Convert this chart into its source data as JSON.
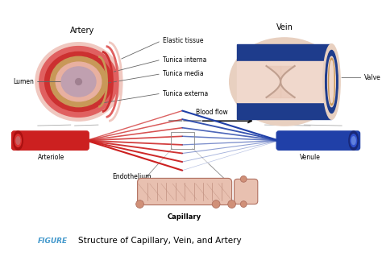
{
  "title": "Structure of Capillary, Vein, and Artery",
  "figure_label": "FIGURE",
  "figure_label_color": "#4499cc",
  "bg_color": "#ffffff",
  "labels": {
    "artery": "Artery",
    "vein": "Vein",
    "lumen": "Lumen",
    "elastic_tissue": "Elastic tissue",
    "tunica_interna": "Tunica interna",
    "tunica_media": "Tunica media",
    "tunica_externa": "Tunica externa",
    "valve": "Valve",
    "blood_flow": "Blood flow",
    "arteriole": "Arteriole",
    "venule": "Venule",
    "endothelium": "Endothelium",
    "capillary": "Capillary"
  },
  "colors": {
    "artery_pale": "#f0c8c0",
    "artery_red1": "#e06060",
    "artery_red2": "#cc3030",
    "artery_tan": "#c89858",
    "artery_pink": "#e8b0a0",
    "artery_lumen": "#c0a0b0",
    "vein_outer_pink": "#e8d0c0",
    "vein_blue_dark": "#1e3c8c",
    "vein_blue_mid": "#2850a8",
    "vein_blue_light": "#4060b0",
    "vein_pink_inner": "#f0d8cc",
    "vein_valve_color": "#e0b0a0",
    "red_vessel": "#cc2020",
    "red_vessel_dark": "#aa1010",
    "blue_vessel": "#2040a8",
    "blue_vessel_dark": "#182878",
    "capillary_fill": "#e8c0b0",
    "capillary_edge": "#b07060",
    "capillary_grid": "#c09080",
    "capillary_nucleus": "#d09078",
    "annotation_line": "#666666",
    "arrow_color": "#111111"
  },
  "font_sizes": {
    "title": 7.5,
    "heading": 7,
    "label": 6,
    "small": 5.5,
    "figure_label": 6.5
  }
}
